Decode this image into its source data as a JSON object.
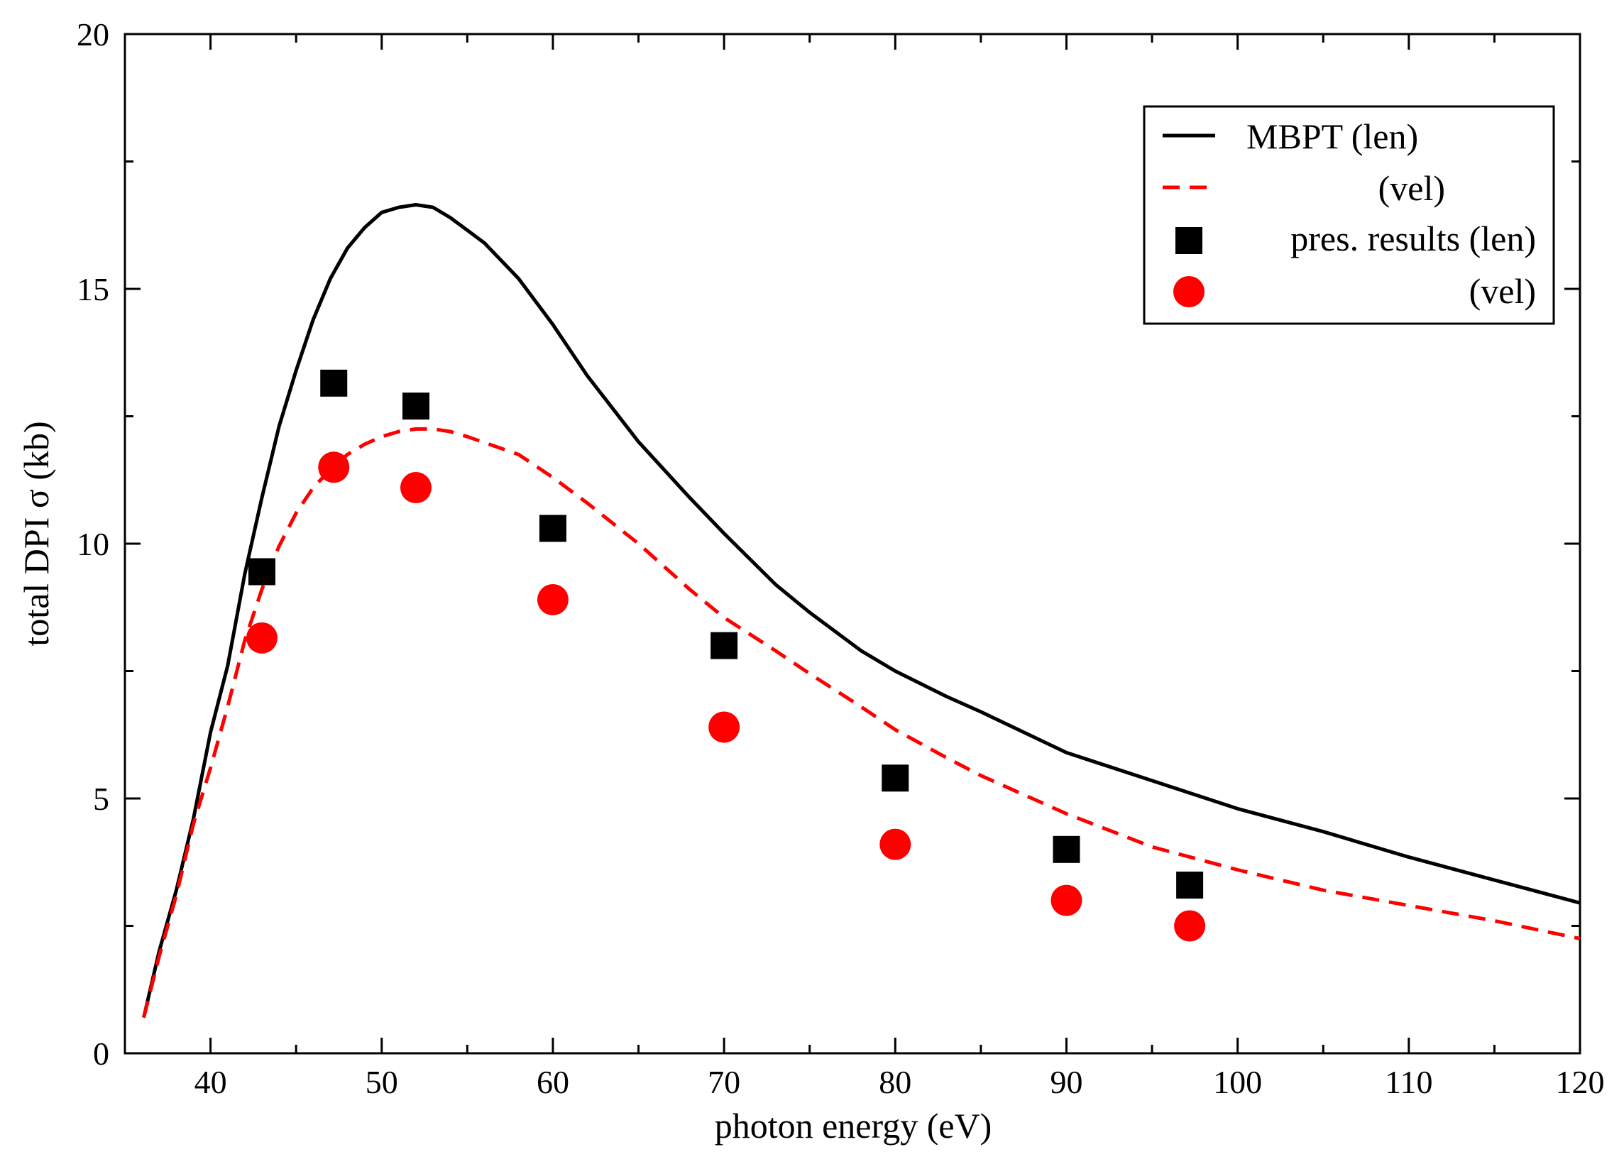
{
  "chart_data": {
    "type": "line",
    "title": "",
    "xlabel": "photon energy (eV)",
    "ylabel": "total DPI σ (kb)",
    "xlim": [
      35,
      120
    ],
    "ylim": [
      0,
      20
    ],
    "x_ticks": [
      40,
      50,
      60,
      70,
      80,
      90,
      100,
      110,
      120
    ],
    "y_ticks": [
      0,
      5,
      10,
      15,
      20
    ],
    "x_tick_labels": [
      "40",
      "50",
      "60",
      "70",
      "80",
      "90",
      "100",
      "110",
      "120"
    ],
    "y_tick_labels": [
      "0",
      "5",
      "10",
      "15",
      "20"
    ],
    "x_minor_step": 5,
    "y_minor_step": 2.5,
    "grid": false,
    "legend_position": "top-right",
    "series": [
      {
        "name": "MBPT (len)",
        "legend_label": "MBPT (len)",
        "kind": "line",
        "style": "solid",
        "color": "#000000",
        "points": [
          [
            36.1,
            0.7
          ],
          [
            37,
            2.0
          ],
          [
            38,
            3.2
          ],
          [
            39,
            4.6
          ],
          [
            40,
            6.3
          ],
          [
            41,
            7.6
          ],
          [
            42,
            9.4
          ],
          [
            43,
            10.9
          ],
          [
            44,
            12.3
          ],
          [
            45,
            13.4
          ],
          [
            46,
            14.4
          ],
          [
            47,
            15.2
          ],
          [
            48,
            15.8
          ],
          [
            49,
            16.2
          ],
          [
            50,
            16.5
          ],
          [
            51,
            16.6
          ],
          [
            52,
            16.65
          ],
          [
            53,
            16.6
          ],
          [
            54,
            16.4
          ],
          [
            55,
            16.15
          ],
          [
            56,
            15.9
          ],
          [
            58,
            15.2
          ],
          [
            60,
            14.3
          ],
          [
            62,
            13.3
          ],
          [
            65,
            12.0
          ],
          [
            68,
            10.9
          ],
          [
            70,
            10.2
          ],
          [
            73,
            9.2
          ],
          [
            75,
            8.65
          ],
          [
            78,
            7.9
          ],
          [
            80,
            7.5
          ],
          [
            83,
            7.0
          ],
          [
            85,
            6.7
          ],
          [
            90,
            5.9
          ],
          [
            95,
            5.35
          ],
          [
            100,
            4.8
          ],
          [
            105,
            4.35
          ],
          [
            110,
            3.85
          ],
          [
            115,
            3.4
          ],
          [
            120,
            2.95
          ]
        ]
      },
      {
        "name": "MBPT (vel)",
        "legend_label": "(vel)",
        "kind": "line",
        "style": "dashed",
        "color": "#ff0000",
        "points": [
          [
            36.1,
            0.7
          ],
          [
            37,
            1.9
          ],
          [
            38,
            3.1
          ],
          [
            39,
            4.5
          ],
          [
            40,
            5.6
          ],
          [
            41,
            6.8
          ],
          [
            42,
            8.1
          ],
          [
            43,
            9.1
          ],
          [
            44,
            9.95
          ],
          [
            45,
            10.6
          ],
          [
            46,
            11.1
          ],
          [
            47,
            11.45
          ],
          [
            48,
            11.75
          ],
          [
            49,
            11.95
          ],
          [
            50,
            12.1
          ],
          [
            51,
            12.2
          ],
          [
            52,
            12.25
          ],
          [
            53,
            12.25
          ],
          [
            54,
            12.2
          ],
          [
            55,
            12.1
          ],
          [
            58,
            11.75
          ],
          [
            60,
            11.3
          ],
          [
            62,
            10.8
          ],
          [
            65,
            10.0
          ],
          [
            68,
            9.1
          ],
          [
            70,
            8.55
          ],
          [
            73,
            7.9
          ],
          [
            75,
            7.45
          ],
          [
            78,
            6.8
          ],
          [
            80,
            6.35
          ],
          [
            83,
            5.8
          ],
          [
            85,
            5.45
          ],
          [
            90,
            4.7
          ],
          [
            95,
            4.05
          ],
          [
            100,
            3.6
          ],
          [
            105,
            3.2
          ],
          [
            110,
            2.9
          ],
          [
            115,
            2.6
          ],
          [
            120,
            2.25
          ]
        ]
      },
      {
        "name": "pres. results (len)",
        "legend_label": "pres. results (len)",
        "kind": "marker",
        "marker": "square",
        "color": "#000000",
        "points": [
          [
            43,
            9.45
          ],
          [
            47.2,
            13.15
          ],
          [
            52,
            12.7
          ],
          [
            60,
            10.3
          ],
          [
            70,
            8.0
          ],
          [
            80,
            5.4
          ],
          [
            90,
            4.0
          ],
          [
            97.2,
            3.3
          ]
        ]
      },
      {
        "name": "pres. results (vel)",
        "legend_label": "(vel)",
        "kind": "marker",
        "marker": "circle",
        "color": "#ff0000",
        "points": [
          [
            43,
            8.15
          ],
          [
            47.2,
            11.5
          ],
          [
            52,
            11.1
          ],
          [
            60,
            8.9
          ],
          [
            70,
            6.4
          ],
          [
            80,
            4.1
          ],
          [
            90,
            3.0
          ],
          [
            97.2,
            2.5
          ]
        ]
      }
    ]
  }
}
